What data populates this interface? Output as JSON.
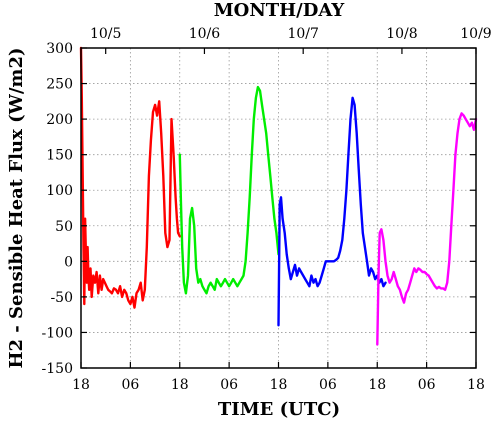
{
  "chart_data": {
    "type": "line",
    "top_axis_title": "MONTH/DAY",
    "xlabel": "TIME (UTC)",
    "ylabel": "H2 - Sensible Heat Flux (W/m2)",
    "xlim": [
      0,
      96
    ],
    "ylim": [
      -150,
      300
    ],
    "grid": true,
    "yticks": [
      -150,
      -100,
      -50,
      0,
      50,
      100,
      150,
      200,
      250,
      300
    ],
    "bottom_ticks": [
      {
        "x": 0,
        "label": "18"
      },
      {
        "x": 12,
        "label": "06"
      },
      {
        "x": 24,
        "label": "18"
      },
      {
        "x": 36,
        "label": "06"
      },
      {
        "x": 48,
        "label": "18"
      },
      {
        "x": 60,
        "label": "06"
      },
      {
        "x": 72,
        "label": "18"
      },
      {
        "x": 84,
        "label": "06"
      },
      {
        "x": 96,
        "label": "18"
      }
    ],
    "top_ticks": [
      {
        "x": -18,
        "label": "10/5"
      },
      {
        "x": 6,
        "label": "10/6"
      },
      {
        "x": 30,
        "label": "10/7"
      },
      {
        "x": 54,
        "label": "10/8"
      },
      {
        "x": 78,
        "label": "10/9"
      }
    ],
    "series": [
      {
        "color": "#ff0000",
        "x": [
          0,
          0.2,
          0.4,
          0.6,
          0.8,
          1.0,
          1.2,
          1.4,
          1.6,
          1.8,
          2.0,
          2.3,
          2.6,
          3.0,
          3.4,
          3.8,
          4.2,
          4.6,
          5.0,
          5.4,
          5.8,
          6.2,
          6.6,
          7.0,
          7.5,
          8.0,
          8.5,
          9.0,
          9.5,
          10.0,
          10.5,
          11.0,
          11.5,
          12.0,
          12.5,
          13.0,
          13.5,
          14.0,
          14.5,
          15.0,
          15.5,
          16.0,
          16.5,
          17.0,
          17.5,
          18.0,
          18.5,
          19.0,
          19.5,
          20.0,
          20.5,
          21.0,
          21.5,
          22.0,
          22.5,
          23.0,
          23.3,
          23.6,
          24.0
        ],
        "y": [
          300,
          230,
          130,
          20,
          -60,
          60,
          10,
          -30,
          20,
          -20,
          -40,
          -10,
          -50,
          -20,
          -30,
          -15,
          -45,
          -20,
          -40,
          -25,
          -30,
          -35,
          -40,
          -42,
          -45,
          -38,
          -40,
          -45,
          -35,
          -50,
          -40,
          -45,
          -55,
          -60,
          -50,
          -65,
          -45,
          -40,
          -30,
          -55,
          -40,
          20,
          120,
          170,
          210,
          220,
          205,
          225,
          180,
          120,
          40,
          20,
          30,
          200,
          150,
          90,
          60,
          40,
          35
        ]
      },
      {
        "color": "#00ee00",
        "x": [
          24,
          24.3,
          24.6,
          25.0,
          25.5,
          26.0,
          26.5,
          27.0,
          27.5,
          28.0,
          28.5,
          29.0,
          29.5,
          30.0,
          30.5,
          31.0,
          31.5,
          32.0,
          32.5,
          33.0,
          33.5,
          34.0,
          34.5,
          35.0,
          35.5,
          36.0,
          36.5,
          37.0,
          37.5,
          38.0,
          38.5,
          39.0,
          39.5,
          40.0,
          40.5,
          41.0,
          41.5,
          42.0,
          42.5,
          43.0,
          43.5,
          44.0,
          44.5,
          45.0,
          45.5,
          46.0,
          46.5,
          47.0,
          47.5,
          48.0
        ],
        "y": [
          150,
          80,
          20,
          -30,
          -45,
          -20,
          60,
          75,
          50,
          -10,
          -30,
          -25,
          -35,
          -40,
          -45,
          -35,
          -30,
          -35,
          -40,
          -25,
          -30,
          -35,
          -30,
          -25,
          -30,
          -35,
          -30,
          -25,
          -30,
          -35,
          -30,
          -25,
          -20,
          0,
          40,
          90,
          150,
          200,
          230,
          245,
          240,
          220,
          200,
          180,
          150,
          120,
          90,
          60,
          40,
          10
        ]
      },
      {
        "color": "#0000ff",
        "x": [
          48,
          48.3,
          48.6,
          49.0,
          49.5,
          50.0,
          50.5,
          51.0,
          51.5,
          52.0,
          52.5,
          53.0,
          53.5,
          54.0,
          54.5,
          55.0,
          55.5,
          56.0,
          56.5,
          57.0,
          57.5,
          58.0,
          58.5,
          59.0,
          59.5,
          60.0,
          60.5,
          61.0,
          61.5,
          62.0,
          62.5,
          63.0,
          63.5,
          64.0,
          64.5,
          65.0,
          65.5,
          66.0,
          66.5,
          67.0,
          67.5,
          68.0,
          68.5,
          69.0,
          69.5,
          70.0,
          70.5,
          71.0,
          71.5,
          72.0,
          72.5,
          73.0,
          73.5,
          74.0
        ],
        "y": [
          -90,
          80,
          90,
          60,
          40,
          10,
          -10,
          -25,
          -15,
          -5,
          -20,
          -10,
          -15,
          -20,
          -25,
          -30,
          -35,
          -20,
          -30,
          -25,
          -35,
          -30,
          -20,
          -10,
          0,
          0,
          0,
          0,
          0,
          2,
          5,
          15,
          30,
          60,
          100,
          150,
          200,
          230,
          220,
          180,
          130,
          80,
          40,
          20,
          0,
          -20,
          -10,
          -15,
          -25,
          -20,
          -30,
          -25,
          -35,
          -30
        ]
      },
      {
        "color": "#ff00ff",
        "x": [
          72,
          72.3,
          72.6,
          73.0,
          73.5,
          74.0,
          74.5,
          75.0,
          75.5,
          76.0,
          76.5,
          77.0,
          77.5,
          78.0,
          78.5,
          79.0,
          79.5,
          80.0,
          80.5,
          81.0,
          81.5,
          82.0,
          82.5,
          83.0,
          83.5,
          84.0,
          84.5,
          85.0,
          85.5,
          86.0,
          86.5,
          87.0,
          87.5,
          88.0,
          88.5,
          89.0,
          89.5,
          90.0,
          90.5,
          91.0,
          91.5,
          92.0,
          92.5,
          93.0,
          93.5,
          94.0,
          94.5,
          95.0,
          95.5,
          96.0
        ],
        "y": [
          -117,
          -20,
          40,
          45,
          30,
          0,
          -20,
          -30,
          -25,
          -15,
          -25,
          -35,
          -40,
          -50,
          -58,
          -45,
          -40,
          -30,
          -20,
          -10,
          -15,
          -10,
          -12,
          -15,
          -15,
          -18,
          -20,
          -25,
          -30,
          -35,
          -38,
          -36,
          -38,
          -38,
          -40,
          -30,
          0,
          50,
          100,
          150,
          180,
          200,
          208,
          205,
          200,
          195,
          190,
          195,
          185,
          200
        ]
      }
    ]
  }
}
